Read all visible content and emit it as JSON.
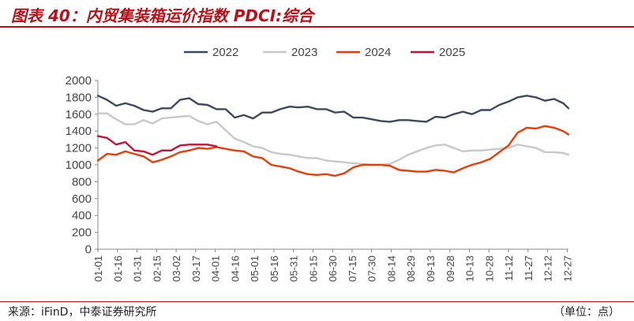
{
  "header": {
    "title": "图表 40：内贸集装箱运价指数 PDCI:综合"
  },
  "footer": {
    "source": "来源：iFinD，中泰证券研究所",
    "unit": "（单位：点）"
  },
  "colors": {
    "accent": "#b5121b",
    "s2022": "#3d4a5c",
    "s2023": "#c8c8c8",
    "s2024": "#e0400e",
    "s2025": "#c0143c"
  },
  "chart_data": {
    "type": "line",
    "ylim": [
      0,
      2000
    ],
    "yticks": [
      0,
      200,
      400,
      600,
      800,
      1000,
      1200,
      1400,
      1600,
      1800,
      2000
    ],
    "xticks": [
      "01-01",
      "01-16",
      "01-31",
      "02-15",
      "03-02",
      "03-17",
      "04-01",
      "04-16",
      "05-01",
      "05-16",
      "05-31",
      "06-15",
      "06-30",
      "07-15",
      "07-30",
      "08-14",
      "08-29",
      "09-13",
      "09-28",
      "10-13",
      "10-28",
      "11-12",
      "11-27",
      "12-12",
      "12-27"
    ],
    "legend_position": "top",
    "grid": false,
    "series": [
      {
        "name": "2022",
        "color_key": "s2022",
        "x": [
          0,
          7,
          14,
          21,
          28,
          35,
          42,
          49,
          56,
          63,
          70,
          77,
          84,
          91,
          98,
          105,
          112,
          119,
          126,
          133,
          140,
          147,
          154,
          161,
          168,
          175,
          182,
          189,
          196,
          203,
          210,
          217,
          224,
          231,
          238,
          245,
          252,
          259,
          266,
          273,
          280,
          287,
          294,
          301,
          308,
          315,
          322,
          329,
          336,
          343,
          350,
          357,
          361
        ],
        "y": [
          1820,
          1770,
          1700,
          1730,
          1700,
          1650,
          1630,
          1670,
          1670,
          1770,
          1790,
          1720,
          1710,
          1660,
          1660,
          1560,
          1590,
          1550,
          1620,
          1620,
          1660,
          1690,
          1680,
          1690,
          1660,
          1660,
          1620,
          1630,
          1560,
          1560,
          1540,
          1520,
          1510,
          1530,
          1530,
          1520,
          1510,
          1570,
          1560,
          1600,
          1630,
          1600,
          1650,
          1650,
          1710,
          1750,
          1800,
          1820,
          1800,
          1760,
          1780,
          1730,
          1670
        ]
      },
      {
        "name": "2023",
        "color_key": "s2023",
        "x": [
          0,
          7,
          14,
          21,
          28,
          35,
          42,
          49,
          56,
          63,
          70,
          77,
          84,
          91,
          98,
          105,
          112,
          119,
          126,
          133,
          140,
          147,
          154,
          161,
          168,
          175,
          182,
          189,
          196,
          203,
          210,
          217,
          224,
          231,
          238,
          245,
          252,
          259,
          266,
          273,
          280,
          287,
          294,
          301,
          308,
          315,
          322,
          329,
          336,
          343,
          350,
          357,
          361
        ],
        "y": [
          1610,
          1610,
          1540,
          1480,
          1480,
          1530,
          1490,
          1550,
          1560,
          1570,
          1580,
          1520,
          1480,
          1510,
          1410,
          1310,
          1270,
          1220,
          1200,
          1150,
          1130,
          1120,
          1100,
          1080,
          1080,
          1050,
          1040,
          1030,
          1020,
          1010,
          1000,
          1000,
          1010,
          1060,
          1120,
          1160,
          1200,
          1230,
          1240,
          1200,
          1160,
          1170,
          1170,
          1180,
          1190,
          1200,
          1240,
          1220,
          1200,
          1150,
          1150,
          1140,
          1120
        ]
      },
      {
        "name": "2024",
        "color_key": "s2024",
        "x": [
          0,
          7,
          14,
          21,
          28,
          35,
          42,
          49,
          56,
          63,
          70,
          77,
          84,
          91,
          98,
          105,
          112,
          119,
          126,
          133,
          140,
          147,
          154,
          161,
          168,
          175,
          182,
          189,
          196,
          203,
          210,
          217,
          224,
          231,
          238,
          245,
          252,
          259,
          266,
          273,
          280,
          287,
          294,
          301,
          308,
          315,
          322,
          329,
          336,
          343,
          350,
          357,
          361
        ],
        "y": [
          1050,
          1130,
          1120,
          1160,
          1130,
          1100,
          1030,
          1060,
          1100,
          1150,
          1170,
          1200,
          1190,
          1210,
          1190,
          1170,
          1160,
          1100,
          1080,
          1000,
          980,
          960,
          920,
          890,
          880,
          890,
          870,
          900,
          970,
          1000,
          1000,
          1000,
          990,
          940,
          930,
          920,
          920,
          940,
          930,
          910,
          960,
          1000,
          1030,
          1070,
          1150,
          1230,
          1380,
          1440,
          1430,
          1460,
          1440,
          1400,
          1360
        ]
      },
      {
        "name": "2025",
        "color_key": "s2025",
        "x": [
          0,
          7,
          14,
          21,
          28,
          35,
          42,
          49,
          56,
          63,
          70,
          77,
          84,
          91
        ],
        "y": [
          1340,
          1320,
          1240,
          1270,
          1170,
          1160,
          1120,
          1170,
          1170,
          1230,
          1240,
          1240,
          1240,
          1220
        ]
      }
    ]
  }
}
